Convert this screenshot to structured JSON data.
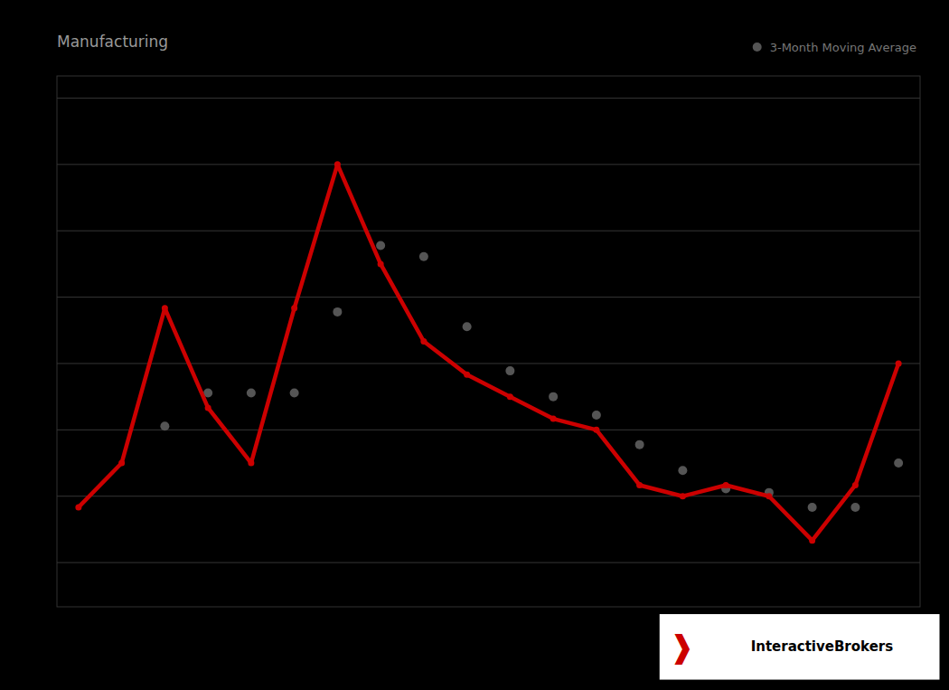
{
  "chart_data": {
    "type": "line",
    "title": "Manufacturing",
    "x": [
      0,
      1,
      2,
      3,
      4,
      5,
      6,
      7,
      8,
      9,
      10,
      11,
      12,
      13,
      14,
      15,
      16,
      17,
      18,
      19
    ],
    "series": [
      {
        "type": "line",
        "marker": "circle",
        "color": "#cc0000",
        "values": [
          46.5,
          48.5,
          55.5,
          51.0,
          48.5,
          55.5,
          62.0,
          57.5,
          54.0,
          52.5,
          51.5,
          50.5,
          50.0,
          47.5,
          47.0,
          47.5,
          47.0,
          45.0,
          47.5,
          53.0
        ]
      },
      {
        "type": "scatter",
        "marker": "circle",
        "name": "3-Month Moving Average",
        "color": "#555555",
        "values": [
          null,
          null,
          50.166666666666664,
          51.666666666666664,
          51.666666666666664,
          51.666666666666664,
          55.333333333333336,
          58.333333333333336,
          57.833333333333336,
          54.666666666666664,
          52.666666666666664,
          51.5,
          50.666666666666664,
          49.333333333333336,
          48.166666666666664,
          47.333333333333336,
          47.166666666666664,
          46.5,
          46.5,
          48.5
        ]
      }
    ],
    "xlim": [
      -0.5,
      19.5
    ],
    "ylim": [
      42.0,
      66.0
    ],
    "yticks": [
      44,
      47,
      50,
      53,
      56,
      59,
      62,
      65
    ],
    "grid": true,
    "legend": "upper right",
    "tick_labels": false,
    "annotations": [
      "❱",
      "InteractiveBrokers"
    ]
  }
}
